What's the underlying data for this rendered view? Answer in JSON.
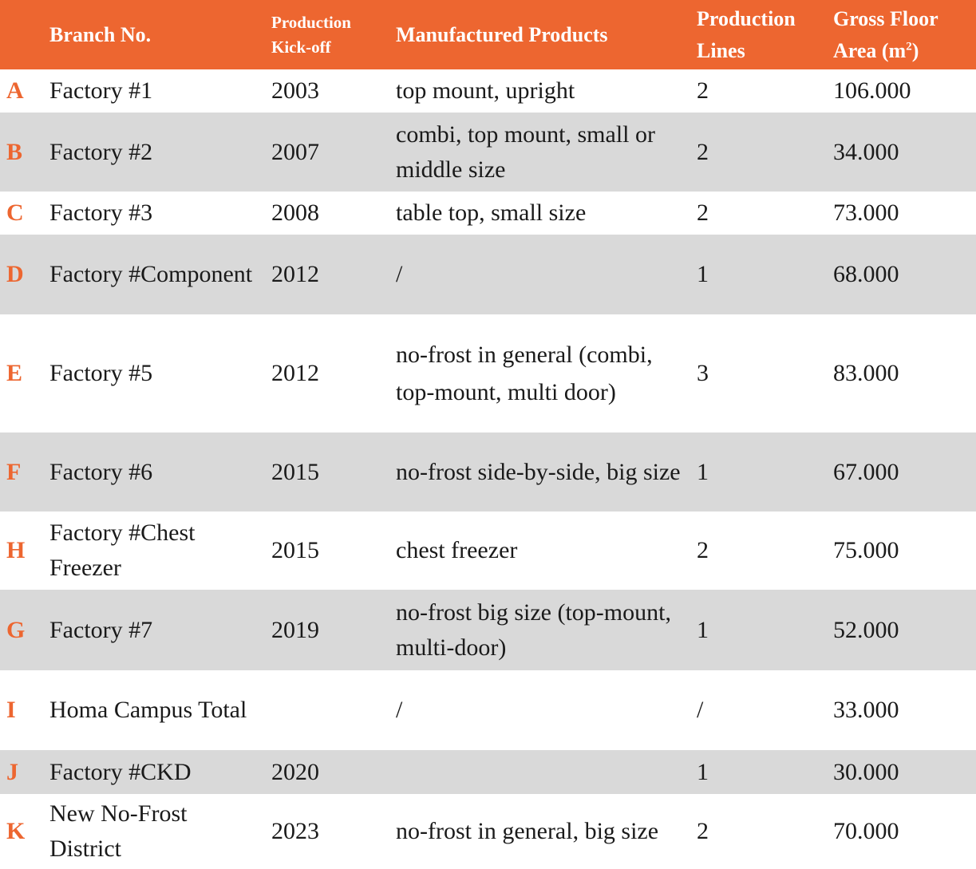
{
  "table": {
    "headers": {
      "branch": "Branch No.",
      "kickoff_line1": "Production",
      "kickoff_line2": "Kick-off",
      "products": "Manufactured Products",
      "lines_line1": "Production",
      "lines_line2": "Lines",
      "area_line1": "Gross Floor",
      "area_line2_pre": "Area (m",
      "area_sup": "2",
      "area_line2_post": ")"
    },
    "rows": [
      {
        "letter": "A",
        "branch": "Factory #1",
        "kickoff": "2003",
        "products": "top mount, upright",
        "lines": "2",
        "area": "106.000"
      },
      {
        "letter": "B",
        "branch": "Factory #2",
        "kickoff": "2007",
        "products": "combi, top mount, small or middle size",
        "lines": "2",
        "area": "34.000"
      },
      {
        "letter": "C",
        "branch": "Factory #3",
        "kickoff": "2008",
        "products": "table top, small size",
        "lines": "2",
        "area": "73.000"
      },
      {
        "letter": "D",
        "branch": "Factory #Component",
        "kickoff": "2012",
        "products": "/",
        "lines": "1",
        "area": "68.000"
      },
      {
        "letter": "E",
        "branch": "Factory #5",
        "kickoff": "2012",
        "products": "no-frost in general (combi, top-mount, multi door)",
        "lines": "3",
        "area": "83.000"
      },
      {
        "letter": "F",
        "branch": "Factory #6",
        "kickoff": "2015",
        "products": "no-frost side-by-side, big size",
        "lines": "1",
        "area": "67.000"
      },
      {
        "letter": "H",
        "branch": "Factory #Chest Freezer",
        "kickoff": "2015",
        "products": "chest freezer",
        "lines": "2",
        "area": "75.000"
      },
      {
        "letter": "G",
        "branch": "Factory #7",
        "kickoff": "2019",
        "products": "no-frost big size (top-mount, multi-door)",
        "lines": "1",
        "area": "52.000"
      },
      {
        "letter": "I",
        "branch": "Homa Campus Total",
        "kickoff": "",
        "products": "/",
        "lines": "/",
        "area": "33.000"
      },
      {
        "letter": "J",
        "branch": "Factory #CKD",
        "kickoff": "2020",
        "products": "",
        "lines": "1",
        "area": "30.000"
      },
      {
        "letter": "K",
        "branch": "New No-Frost District",
        "kickoff": "2023",
        "products": "no-frost in general, big size",
        "lines": "2",
        "area": "70.000"
      }
    ]
  },
  "colors": {
    "header_bg": "#ED6630",
    "row_shade": "#D9D9D9",
    "letter": "#ED6630"
  }
}
